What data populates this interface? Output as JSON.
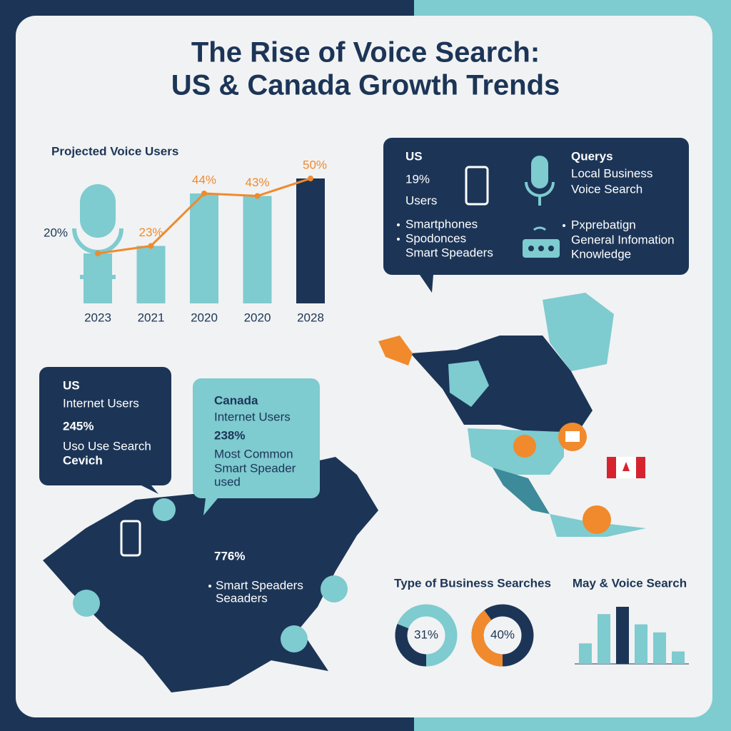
{
  "title": [
    "The Rise of Voice Search:",
    "US & Canada Growth Trends"
  ],
  "chart_data": [
    {
      "type": "bar",
      "title": "Projected Voice  Users",
      "categories": [
        "2023",
        "2021",
        "2020",
        "2020",
        "2028"
      ],
      "values": [
        20,
        23,
        44,
        43,
        50
      ],
      "value_labels": [
        "20%",
        "23%",
        "44%",
        "43%",
        "50%"
      ],
      "color": "#7ecbd0",
      "last_color": "#1c3557",
      "line_color": "#f08a2c"
    },
    {
      "type": "donut",
      "title": "Type of Business Searches",
      "values": [
        31,
        40
      ],
      "value_labels": [
        "31%",
        "40%"
      ],
      "colors": [
        "#1c3557",
        "#f08a2c"
      ],
      "rest_color": "#7ecbd0"
    },
    {
      "type": "bar",
      "title": "May & Voice Search",
      "values": [
        28,
        68,
        78,
        54,
        43,
        17
      ],
      "colors": [
        "#7ecbd0",
        "#7ecbd0",
        "#1c3557",
        "#7ecbd0",
        "#7ecbd0",
        "#7ecbd0"
      ]
    }
  ],
  "us_box": {
    "title": "US",
    "stat": "19%",
    "stat_label": "Users",
    "devices": [
      "Smartphones",
      "Spodonces",
      "Smart Speaders"
    ],
    "queries_title": "Querys",
    "queries": [
      "Local Business",
      "Voice Search"
    ],
    "other_queries": [
      "Pxprebatign",
      "General Infomation",
      "Knowledge"
    ]
  },
  "us_callout": {
    "title": "US",
    "subtitle": "Internet Users",
    "stat": "245%",
    "lines": [
      "Uso Use Search",
      "Cevich"
    ]
  },
  "canada_callout": {
    "title": "Canada",
    "subtitle": "Internet Users",
    "stat": "238%",
    "lines": [
      "Most Common",
      "Smart Speader",
      "used"
    ]
  },
  "map_stat": {
    "stat": "776%",
    "lines": [
      "Smart Speaders",
      "Seaaders"
    ]
  }
}
